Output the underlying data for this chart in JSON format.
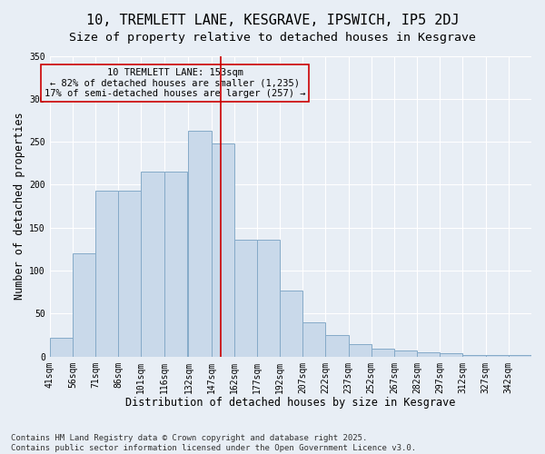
{
  "title": "10, TREMLETT LANE, KESGRAVE, IPSWICH, IP5 2DJ",
  "subtitle": "Size of property relative to detached houses in Kesgrave",
  "xlabel": "Distribution of detached houses by size in Kesgrave",
  "ylabel": "Number of detached properties",
  "footer": "Contains HM Land Registry data © Crown copyright and database right 2025.\nContains public sector information licensed under the Open Government Licence v3.0.",
  "categories": [
    "41sqm",
    "56sqm",
    "71sqm",
    "86sqm",
    "101sqm",
    "116sqm",
    "132sqm",
    "147sqm",
    "162sqm",
    "177sqm",
    "192sqm",
    "207sqm",
    "222sqm",
    "237sqm",
    "252sqm",
    "267sqm",
    "282sqm",
    "297sqm",
    "312sqm",
    "327sqm",
    "342sqm"
  ],
  "bar_heights": [
    22,
    120,
    193,
    193,
    215,
    215,
    263,
    248,
    136,
    136,
    77,
    40,
    25,
    14,
    9,
    7,
    5,
    4,
    2,
    2,
    2
  ],
  "bar_color": "#c9d9ea",
  "bar_edge_color": "#85aac8",
  "background_color": "#e8eef5",
  "vline_color": "#cc0000",
  "annotation_text": "10 TREMLETT LANE: 153sqm\n← 82% of detached houses are smaller (1,235)\n17% of semi-detached houses are larger (257) →",
  "ylim": [
    0,
    350
  ],
  "yticks": [
    0,
    50,
    100,
    150,
    200,
    250,
    300,
    350
  ],
  "title_fontsize": 11,
  "subtitle_fontsize": 9.5,
  "xlabel_fontsize": 8.5,
  "ylabel_fontsize": 8.5,
  "tick_fontsize": 7,
  "annotation_fontsize": 7.5,
  "footer_fontsize": 6.5
}
